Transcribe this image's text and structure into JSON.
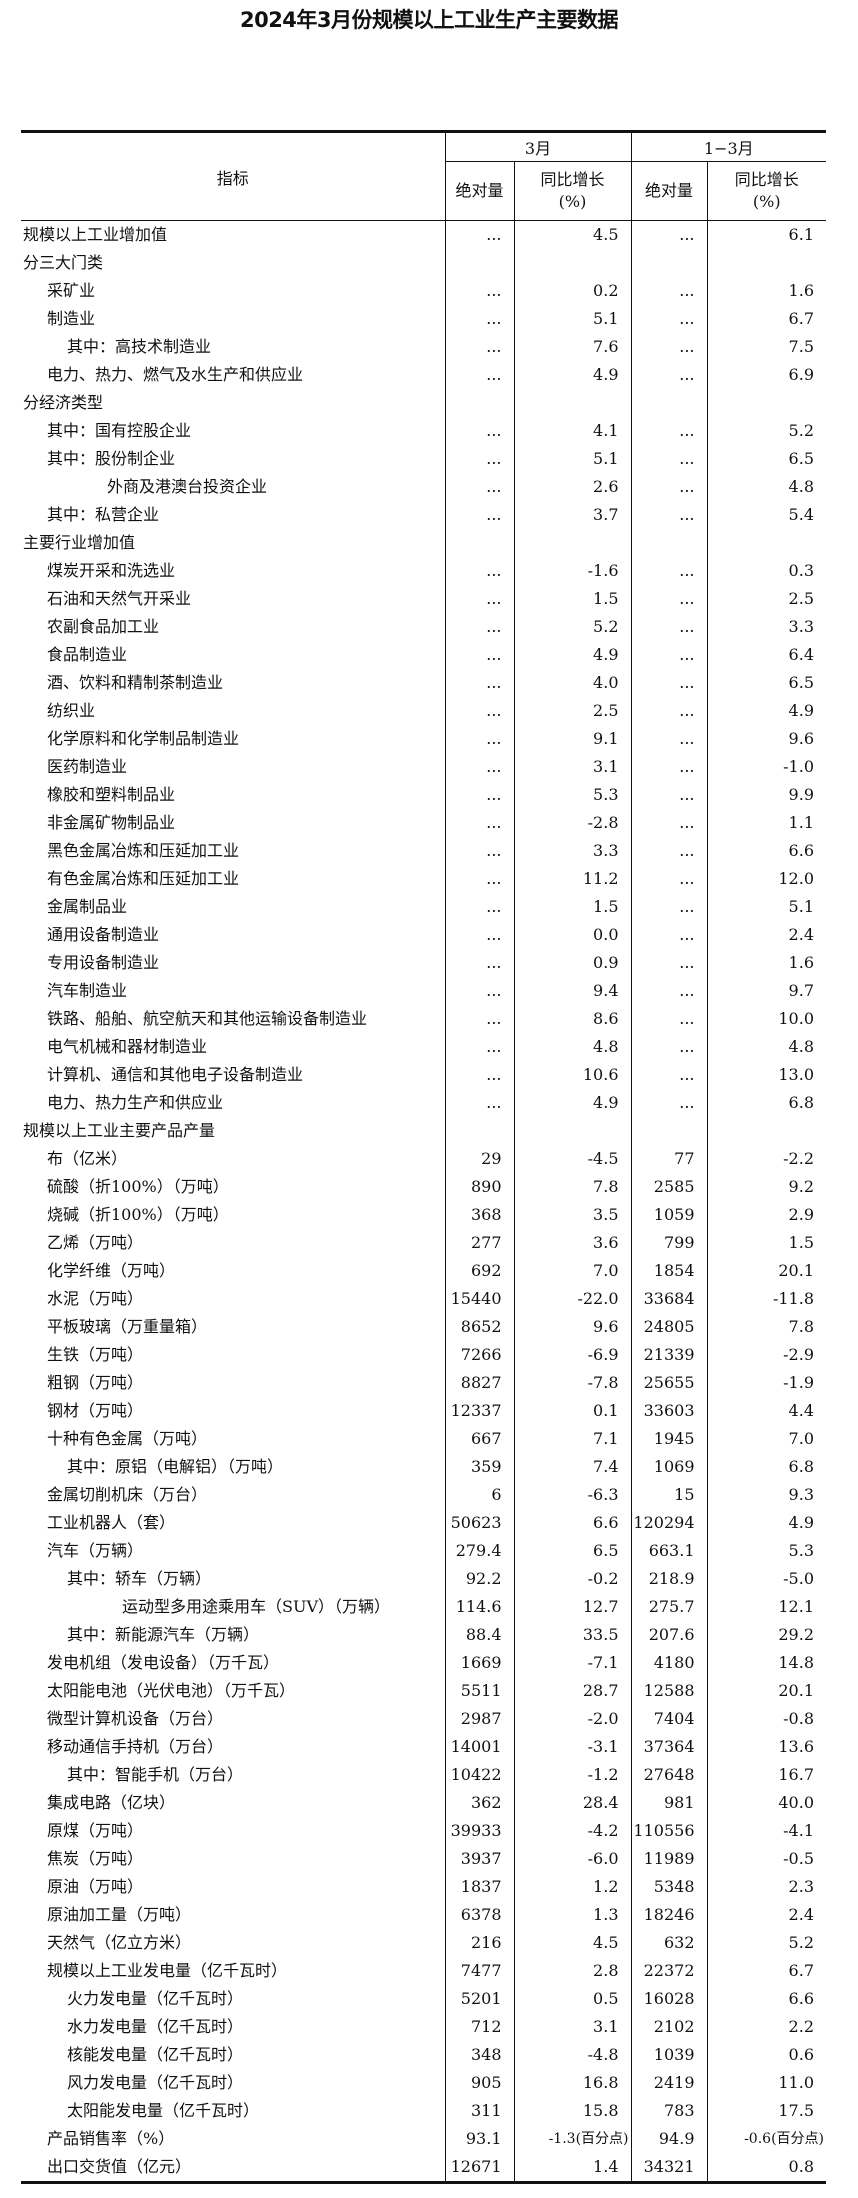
{
  "title": "2024年3月份规模以上工业生产主要数据",
  "header": {
    "indicator": "指标",
    "period_march": "3月",
    "period_q1": "1−3月",
    "absolute": "绝对量",
    "yoy": "同比增长",
    "pct": "(%)"
  },
  "rows": [
    {
      "level": 0,
      "label": "规模以上工业增加值",
      "v": [
        "...",
        "4.5",
        "...",
        "6.1"
      ]
    },
    {
      "level": 0,
      "label": "分三大门类",
      "v": [
        "",
        "",
        "",
        ""
      ]
    },
    {
      "level": 1,
      "label": "采矿业",
      "v": [
        "...",
        "0.2",
        "...",
        "1.6"
      ]
    },
    {
      "level": 1,
      "label": "制造业",
      "v": [
        "...",
        "5.1",
        "...",
        "6.7"
      ]
    },
    {
      "level": 2,
      "label": "其中：高技术制造业",
      "v": [
        "...",
        "7.6",
        "...",
        "7.5"
      ]
    },
    {
      "level": 1,
      "label": "电力、热力、燃气及水生产和供应业",
      "v": [
        "...",
        "4.9",
        "...",
        "6.9"
      ]
    },
    {
      "level": 0,
      "label": "分经济类型",
      "v": [
        "",
        "",
        "",
        ""
      ]
    },
    {
      "level": 1,
      "label": "其中：国有控股企业",
      "v": [
        "...",
        "4.1",
        "...",
        "5.2"
      ]
    },
    {
      "level": 1,
      "label": "其中：股份制企业",
      "v": [
        "...",
        "5.1",
        "...",
        "6.5"
      ]
    },
    {
      "level": 3,
      "label": "外商及港澳台投资企业",
      "v": [
        "...",
        "2.6",
        "...",
        "4.8"
      ]
    },
    {
      "level": 1,
      "label": "其中：私营企业",
      "v": [
        "...",
        "3.7",
        "...",
        "5.4"
      ]
    },
    {
      "level": 0,
      "label": "主要行业增加值",
      "v": [
        "",
        "",
        "",
        ""
      ]
    },
    {
      "level": 1,
      "label": "煤炭开采和洗选业",
      "v": [
        "...",
        "-1.6",
        "...",
        "0.3"
      ]
    },
    {
      "level": 1,
      "label": "石油和天然气开采业",
      "v": [
        "...",
        "1.5",
        "...",
        "2.5"
      ]
    },
    {
      "level": 1,
      "label": "农副食品加工业",
      "v": [
        "...",
        "5.2",
        "...",
        "3.3"
      ]
    },
    {
      "level": 1,
      "label": "食品制造业",
      "v": [
        "...",
        "4.9",
        "...",
        "6.4"
      ]
    },
    {
      "level": 1,
      "label": "酒、饮料和精制茶制造业",
      "v": [
        "...",
        "4.0",
        "...",
        "6.5"
      ]
    },
    {
      "level": 1,
      "label": "纺织业",
      "v": [
        "...",
        "2.5",
        "...",
        "4.9"
      ]
    },
    {
      "level": 1,
      "label": "化学原料和化学制品制造业",
      "v": [
        "...",
        "9.1",
        "...",
        "9.6"
      ]
    },
    {
      "level": 1,
      "label": "医药制造业",
      "v": [
        "...",
        "3.1",
        "...",
        "-1.0"
      ]
    },
    {
      "level": 1,
      "label": "橡胶和塑料制品业",
      "v": [
        "...",
        "5.3",
        "...",
        "9.9"
      ]
    },
    {
      "level": 1,
      "label": "非金属矿物制品业",
      "v": [
        "...",
        "-2.8",
        "...",
        "1.1"
      ]
    },
    {
      "level": 1,
      "label": "黑色金属冶炼和压延加工业",
      "v": [
        "...",
        "3.3",
        "...",
        "6.6"
      ]
    },
    {
      "level": 1,
      "label": "有色金属冶炼和压延加工业",
      "v": [
        "...",
        "11.2",
        "...",
        "12.0"
      ]
    },
    {
      "level": 1,
      "label": "金属制品业",
      "v": [
        "...",
        "1.5",
        "...",
        "5.1"
      ]
    },
    {
      "level": 1,
      "label": "通用设备制造业",
      "v": [
        "...",
        "0.0",
        "...",
        "2.4"
      ]
    },
    {
      "level": 1,
      "label": "专用设备制造业",
      "v": [
        "...",
        "0.9",
        "...",
        "1.6"
      ]
    },
    {
      "level": 1,
      "label": "汽车制造业",
      "v": [
        "...",
        "9.4",
        "...",
        "9.7"
      ]
    },
    {
      "level": 1,
      "label": "铁路、船舶、航空航天和其他运输设备制造业",
      "v": [
        "...",
        "8.6",
        "...",
        "10.0"
      ]
    },
    {
      "level": 1,
      "label": "电气机械和器材制造业",
      "v": [
        "...",
        "4.8",
        "...",
        "4.8"
      ]
    },
    {
      "level": 1,
      "label": "计算机、通信和其他电子设备制造业",
      "v": [
        "...",
        "10.6",
        "...",
        "13.0"
      ]
    },
    {
      "level": 1,
      "label": "电力、热力生产和供应业",
      "v": [
        "...",
        "4.9",
        "...",
        "6.8"
      ]
    },
    {
      "level": 0,
      "label": "规模以上工业主要产品产量",
      "v": [
        "",
        "",
        "",
        ""
      ]
    },
    {
      "level": 1,
      "label": "布（亿米）",
      "v": [
        "29",
        "-4.5",
        "77",
        "-2.2"
      ]
    },
    {
      "level": 1,
      "label": "硫酸（折100%）（万吨）",
      "v": [
        "890",
        "7.8",
        "2585",
        "9.2"
      ]
    },
    {
      "level": 1,
      "label": "烧碱（折100%）（万吨）",
      "v": [
        "368",
        "3.5",
        "1059",
        "2.9"
      ]
    },
    {
      "level": 1,
      "label": "乙烯（万吨）",
      "v": [
        "277",
        "3.6",
        "799",
        "1.5"
      ]
    },
    {
      "level": 1,
      "label": "化学纤维（万吨）",
      "v": [
        "692",
        "7.0",
        "1854",
        "20.1"
      ]
    },
    {
      "level": 1,
      "label": "水泥（万吨）",
      "v": [
        "15440",
        "-22.0",
        "33684",
        "-11.8"
      ]
    },
    {
      "level": 1,
      "label": "平板玻璃（万重量箱）",
      "v": [
        "8652",
        "9.6",
        "24805",
        "7.8"
      ]
    },
    {
      "level": 1,
      "label": "生铁（万吨）",
      "v": [
        "7266",
        "-6.9",
        "21339",
        "-2.9"
      ]
    },
    {
      "level": 1,
      "label": "粗钢（万吨）",
      "v": [
        "8827",
        "-7.8",
        "25655",
        "-1.9"
      ]
    },
    {
      "level": 1,
      "label": "钢材（万吨）",
      "v": [
        "12337",
        "0.1",
        "33603",
        "4.4"
      ]
    },
    {
      "level": 1,
      "label": "十种有色金属（万吨）",
      "v": [
        "667",
        "7.1",
        "1945",
        "7.0"
      ]
    },
    {
      "level": 2,
      "label": "其中：原铝（电解铝）（万吨）",
      "v": [
        "359",
        "7.4",
        "1069",
        "6.8"
      ]
    },
    {
      "level": 1,
      "label": "金属切削机床（万台）",
      "v": [
        "6",
        "-6.3",
        "15",
        "9.3"
      ]
    },
    {
      "level": 1,
      "label": "工业机器人（套）",
      "v": [
        "50623",
        "6.6",
        "120294",
        "4.9"
      ]
    },
    {
      "level": 1,
      "label": "汽车（万辆）",
      "v": [
        "279.4",
        "6.5",
        "663.1",
        "5.3"
      ]
    },
    {
      "level": 2,
      "label": "其中：轿车（万辆）",
      "v": [
        "92.2",
        "-0.2",
        "218.9",
        "-5.0"
      ]
    },
    {
      "level": 4,
      "label": "运动型多用途乘用车（SUV）（万辆）",
      "v": [
        "114.6",
        "12.7",
        "275.7",
        "12.1"
      ]
    },
    {
      "level": 2,
      "label": "其中：新能源汽车（万辆）",
      "v": [
        "88.4",
        "33.5",
        "207.6",
        "29.2"
      ]
    },
    {
      "level": 1,
      "label": "发电机组（发电设备）（万千瓦）",
      "v": [
        "1669",
        "-7.1",
        "4180",
        "14.8"
      ]
    },
    {
      "level": 1,
      "label": "太阳能电池（光伏电池）（万千瓦）",
      "v": [
        "5511",
        "28.7",
        "12588",
        "20.1"
      ]
    },
    {
      "level": 1,
      "label": "微型计算机设备（万台）",
      "v": [
        "2987",
        "-2.0",
        "7404",
        "-0.8"
      ]
    },
    {
      "level": 1,
      "label": "移动通信手持机（万台）",
      "v": [
        "14001",
        "-3.1",
        "37364",
        "13.6"
      ]
    },
    {
      "level": 2,
      "label": "其中：智能手机（万台）",
      "v": [
        "10422",
        "-1.2",
        "27648",
        "16.7"
      ]
    },
    {
      "level": 1,
      "label": "集成电路（亿块）",
      "v": [
        "362",
        "28.4",
        "981",
        "40.0"
      ]
    },
    {
      "level": 1,
      "label": "原煤（万吨）",
      "v": [
        "39933",
        "-4.2",
        "110556",
        "-4.1"
      ]
    },
    {
      "level": 1,
      "label": "焦炭（万吨）",
      "v": [
        "3937",
        "-6.0",
        "11989",
        "-0.5"
      ]
    },
    {
      "level": 1,
      "label": "原油（万吨）",
      "v": [
        "1837",
        "1.2",
        "5348",
        "2.3"
      ]
    },
    {
      "level": 1,
      "label": "原油加工量（万吨）",
      "v": [
        "6378",
        "1.3",
        "18246",
        "2.4"
      ]
    },
    {
      "level": 1,
      "label": "天然气（亿立方米）",
      "v": [
        "216",
        "4.5",
        "632",
        "5.2"
      ]
    },
    {
      "level": 1,
      "label": "规模以上工业发电量（亿千瓦时）",
      "v": [
        "7477",
        "2.8",
        "22372",
        "6.7"
      ]
    },
    {
      "level": 2,
      "label": "火力发电量（亿千瓦时）",
      "v": [
        "5201",
        "0.5",
        "16028",
        "6.6"
      ]
    },
    {
      "level": 2,
      "label": "水力发电量（亿千瓦时）",
      "v": [
        "712",
        "3.1",
        "2102",
        "2.2"
      ]
    },
    {
      "level": 2,
      "label": "核能发电量（亿千瓦时）",
      "v": [
        "348",
        "-4.8",
        "1039",
        "0.6"
      ]
    },
    {
      "level": 2,
      "label": "风力发电量（亿千瓦时）",
      "v": [
        "905",
        "16.8",
        "2419",
        "11.0"
      ]
    },
    {
      "level": 2,
      "label": "太阳能发电量（亿千瓦时）",
      "v": [
        "311",
        "15.8",
        "783",
        "17.5"
      ]
    },
    {
      "level": 1,
      "label": "产品销售率（%）",
      "v": [
        "93.1",
        "-1.3(百分点)",
        "94.9",
        "-0.6(百分点)"
      ]
    },
    {
      "level": 1,
      "label": "出口交货值（亿元）",
      "v": [
        "12671",
        "1.4",
        "34321",
        "0.8"
      ]
    }
  ]
}
